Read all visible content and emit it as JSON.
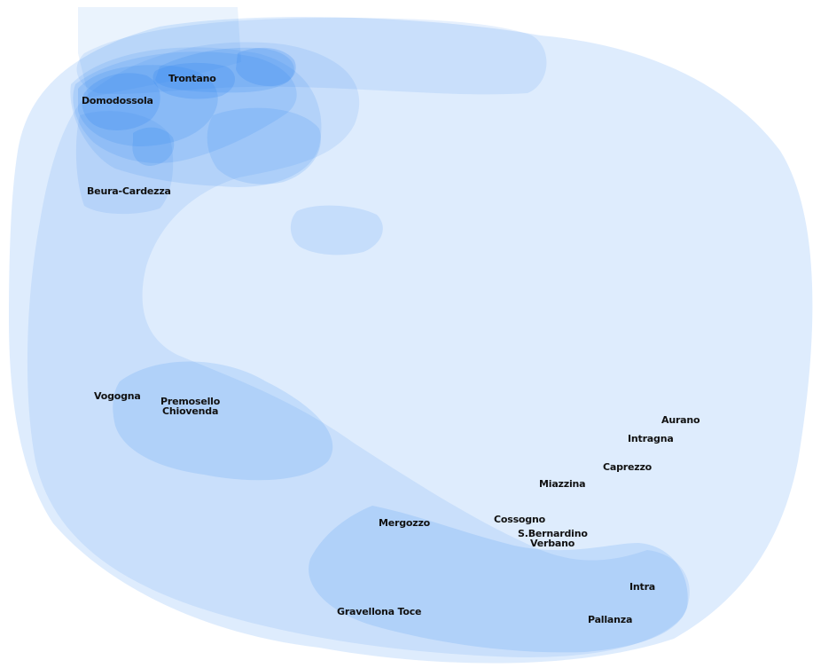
{
  "map": {
    "fill_color": "#2f86f0",
    "label_color": "#111111",
    "places": [
      {
        "id": "trontano",
        "name": "Trontano"
      },
      {
        "id": "domodossola",
        "name": "Domodossola"
      },
      {
        "id": "beura-cardezza",
        "name": "Beura-Cardezza"
      },
      {
        "id": "vogogna",
        "name": "Vogogna"
      },
      {
        "id": "premosello",
        "name": "Premosello"
      },
      {
        "id": "chiovenda",
        "name": "Chiovenda"
      },
      {
        "id": "aurano",
        "name": "Aurano"
      },
      {
        "id": "intragna",
        "name": "Intragna"
      },
      {
        "id": "caprezzo",
        "name": "Caprezzo"
      },
      {
        "id": "miazzina",
        "name": "Miazzina"
      },
      {
        "id": "mergozzo",
        "name": "Mergozzo"
      },
      {
        "id": "cossogno",
        "name": "Cossogno"
      },
      {
        "id": "s-bernardino",
        "name": "S.Bernardino"
      },
      {
        "id": "verbano",
        "name": "Verbano"
      },
      {
        "id": "intra",
        "name": "Intra"
      },
      {
        "id": "gravellona-toce",
        "name": "Gravellona Toce"
      },
      {
        "id": "pallanza",
        "name": "Pallanza"
      }
    ]
  }
}
